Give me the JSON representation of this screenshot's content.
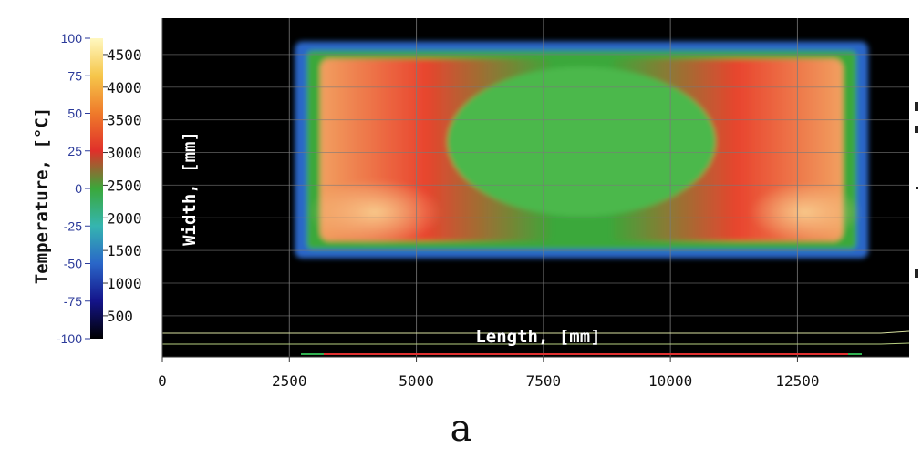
{
  "chart_data": {
    "type": "heatmap",
    "title": "",
    "xlabel": "Length, [mm]",
    "ylabel": "Width, [mm]",
    "colorbar_label": "Temperature, [°C]",
    "x_ticks": [
      0,
      2500,
      5000,
      7500,
      10000,
      12500
    ],
    "xlim": [
      0,
      14700
    ],
    "colorbar_width_ticks": [
      500,
      1000,
      1500,
      2000,
      2500,
      3000,
      3500,
      4000,
      4500
    ],
    "colorbar_temperature_ticks": [
      100,
      75,
      50,
      25,
      0,
      -25,
      -50,
      -75,
      -100
    ],
    "colorbar_range_mm": [
      150,
      4750
    ],
    "colorbar_range_temp": [
      -100,
      100
    ],
    "colorbar_colors": [
      "#fff8c0",
      "#f6c64a",
      "#ef7a2a",
      "#e0302a",
      "#3aa83a",
      "#35b5b0",
      "#2a66c8",
      "#14148a",
      "#000000"
    ],
    "slab": {
      "x_start": 2750,
      "x_end": 13750,
      "y_start": 1450,
      "y_end": 4630,
      "colors": {
        "edge": "#2a66c8",
        "shell": "#3aa83a",
        "hot": "#e8442e",
        "core": "#4cb84c"
      }
    },
    "grid": true,
    "background": "#000000",
    "caption": "a"
  }
}
